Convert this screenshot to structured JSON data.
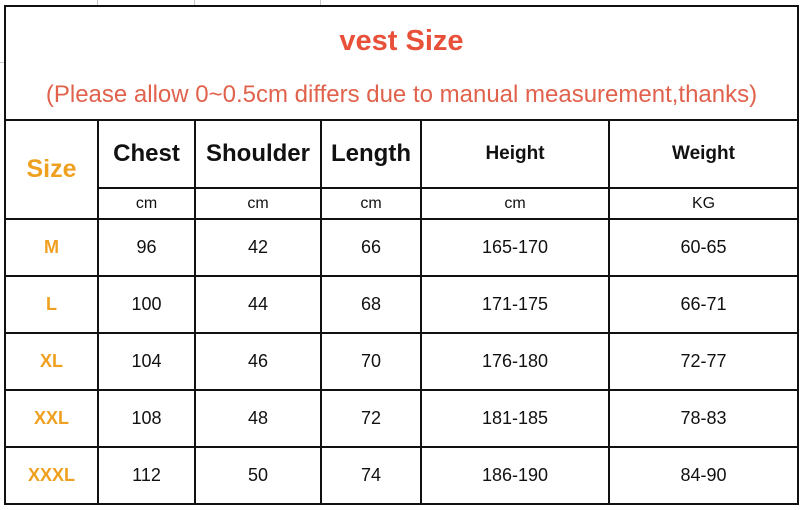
{
  "title": "vest Size",
  "subtitle": "(Please allow 0~0.5cm differs due to manual measurement,thanks)",
  "colors": {
    "title": "#e8503a",
    "size": "#f0a020",
    "border": "#111111"
  },
  "headers": [
    "Size",
    "Chest",
    "Shoulder",
    "Length",
    "Height",
    "Weight"
  ],
  "units": [
    "cm",
    "cm",
    "cm",
    "cm",
    "KG"
  ],
  "rows": [
    [
      "M",
      "96",
      "42",
      "66",
      "165-170",
      "60-65"
    ],
    [
      "L",
      "100",
      "44",
      "68",
      "171-175",
      "66-71"
    ],
    [
      "XL",
      "104",
      "46",
      "70",
      "176-180",
      "72-77"
    ],
    [
      "XXL",
      "108",
      "48",
      "72",
      "181-185",
      "78-83"
    ],
    [
      "XXXL",
      "112",
      "50",
      "74",
      "186-190",
      "84-90"
    ]
  ]
}
